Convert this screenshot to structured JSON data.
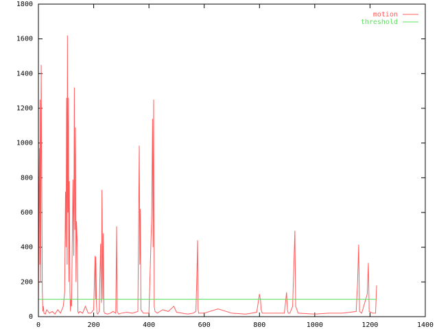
{
  "chart_data": {
    "type": "line",
    "xlim": [
      0,
      1400
    ],
    "ylim": [
      0,
      1800
    ],
    "xticks": [
      0,
      200,
      400,
      600,
      800,
      1000,
      1200,
      1400
    ],
    "yticks": [
      0,
      200,
      400,
      600,
      800,
      1000,
      1200,
      1400,
      1600,
      1800
    ],
    "legend": "top-right",
    "series": [
      {
        "name": "motion",
        "color": "#ff5a5a",
        "x": [
          0,
          2,
          4,
          5,
          6,
          8,
          10,
          12,
          14,
          16,
          18,
          20,
          25,
          30,
          40,
          50,
          60,
          70,
          80,
          90,
          95,
          98,
          100,
          102,
          104,
          105,
          107,
          109,
          110,
          112,
          114,
          116,
          118,
          120,
          125,
          128,
          130,
          132,
          134,
          136,
          138,
          141,
          143,
          145,
          150,
          160,
          170,
          180,
          190,
          200,
          205,
          207,
          208,
          210,
          212,
          215,
          220,
          225,
          228,
          230,
          233,
          235,
          237,
          240,
          250,
          260,
          270,
          280,
          283,
          285,
          290,
          300,
          320,
          340,
          360,
          365,
          367,
          369,
          371,
          375,
          380,
          400,
          410,
          413,
          415,
          417,
          419,
          422,
          430,
          450,
          470,
          490,
          500,
          520,
          540,
          560,
          570,
          574,
          576,
          578,
          580,
          600,
          650,
          700,
          750,
          790,
          800,
          804,
          806,
          810,
          850,
          890,
          898,
          901,
          904,
          910,
          920,
          925,
          928,
          931,
          940,
          1000,
          1050,
          1100,
          1150,
          1155,
          1159,
          1162,
          1170,
          1190,
          1194,
          1197,
          1210,
          1220,
          1224
        ],
        "values": [
          50,
          680,
          970,
          300,
          1250,
          200,
          1450,
          870,
          150,
          30,
          60,
          20,
          15,
          40,
          20,
          30,
          15,
          40,
          20,
          60,
          140,
          720,
          400,
          1260,
          300,
          1620,
          600,
          1260,
          200,
          780,
          150,
          30,
          100,
          60,
          790,
          350,
          1320,
          500,
          1090,
          200,
          550,
          400,
          30,
          20,
          30,
          20,
          60,
          20,
          20,
          40,
          350,
          100,
          345,
          80,
          20,
          15,
          30,
          420,
          80,
          730,
          100,
          480,
          30,
          20,
          15,
          20,
          30,
          20,
          520,
          30,
          15,
          20,
          25,
          20,
          30,
          985,
          300,
          620,
          40,
          30,
          20,
          20,
          580,
          1140,
          400,
          1250,
          60,
          30,
          20,
          40,
          30,
          60,
          25,
          20,
          15,
          20,
          30,
          280,
          440,
          40,
          20,
          20,
          45,
          20,
          15,
          25,
          130,
          90,
          40,
          20,
          20,
          20,
          140,
          40,
          20,
          20,
          60,
          330,
          495,
          60,
          20,
          15,
          20,
          20,
          30,
          200,
          415,
          30,
          20,
          130,
          310,
          30,
          20,
          20,
          180
        ]
      },
      {
        "name": "threshold",
        "color": "#5ae05a",
        "x": [
          0,
          1224
        ],
        "values": [
          100,
          100
        ]
      }
    ]
  }
}
